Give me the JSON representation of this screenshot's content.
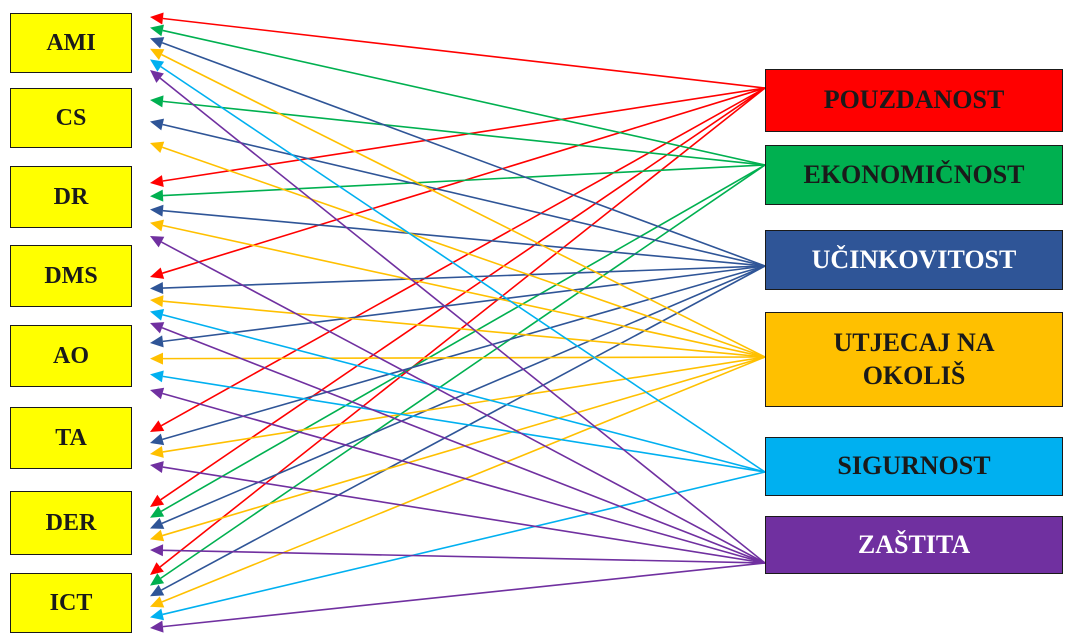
{
  "left_nodes": [
    "AMI",
    "CS",
    "DR",
    "DMS",
    "AO",
    "TA",
    "DER",
    "ICT"
  ],
  "right_nodes": [
    {
      "label": "POUZDANOST",
      "color": "#ff0000"
    },
    {
      "label": "EKONOMIČNOST",
      "color": "#00b050"
    },
    {
      "label": "UČINKOVITOST",
      "color": "#2f5597"
    },
    {
      "label": "UTJECAJ NA OKOLIŠ",
      "color": "#ffc000"
    },
    {
      "label": "SIGURNOST",
      "color": "#00b0f0"
    },
    {
      "label": "ZAŠTITA",
      "color": "#7030a0"
    }
  ],
  "edges": [
    {
      "from": "POUZDANOST",
      "to": [
        "AMI",
        "DR",
        "DMS",
        "TA",
        "DER",
        "ICT"
      ]
    },
    {
      "from": "EKONOMIČNOST",
      "to": [
        "AMI",
        "CS",
        "DR",
        "DER",
        "ICT"
      ]
    },
    {
      "from": "UČINKOVITOST",
      "to": [
        "AMI",
        "CS",
        "DR",
        "DMS",
        "AO",
        "TA",
        "DER",
        "ICT"
      ]
    },
    {
      "from": "UTJECAJ NA OKOLIŠ",
      "to": [
        "AMI",
        "CS",
        "DR",
        "DMS",
        "AO",
        "TA",
        "DER",
        "ICT"
      ]
    },
    {
      "from": "SIGURNOST",
      "to": [
        "AMI",
        "DMS",
        "AO",
        "ICT"
      ]
    },
    {
      "from": "ZAŠTITA",
      "to": [
        "AMI",
        "DR",
        "DMS",
        "AO",
        "TA",
        "DER",
        "ICT"
      ]
    }
  ]
}
